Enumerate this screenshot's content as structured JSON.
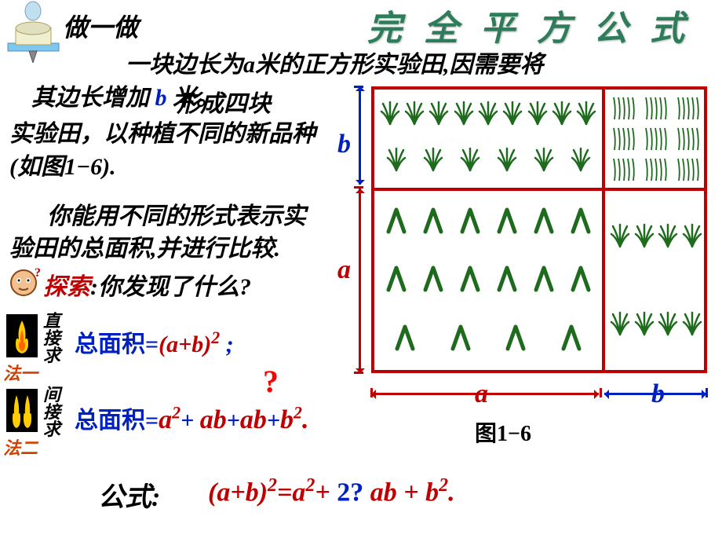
{
  "title": "完全平方公式",
  "header": {
    "doIt": "做一做"
  },
  "problem": {
    "line1_pre": "一块边长为",
    "line1_a": "a",
    "line1_post": "米的正方形实验田,因需要将",
    "line2_pre": "其边长增加 ",
    "line2_b": "b",
    "line2_post": " 米。",
    "line2b": "形成四块",
    "line3": "实验田，以种植不同的新品种",
    "line4": "(如图1−6).",
    "line5": "你能用不同的形式表示实",
    "line6": "验田的总面积,并进行比较."
  },
  "explore": {
    "label": "探索",
    "colon": ":",
    "question": "你发现了什么?"
  },
  "methods": {
    "m1_vert": "直接求",
    "m1_name": "法一",
    "m2_vert": "间接求",
    "m2_name": "法二",
    "f1_label": "总面积=",
    "f1_expr_open": "(",
    "f1_a": "a",
    "f1_plus": "+",
    "f1_b": "b",
    "f1_close": ")",
    "f1_sup": "2",
    "f1_semi": " ;",
    "qmark": "?",
    "f2_label": "总面积=",
    "f2_a2": "a",
    "f2_sup": "2",
    "f2_p1": "+ ",
    "f2_ab1": "ab",
    "f2_p2": "+",
    "f2_ab2": "ab",
    "f2_p3": "+",
    "f2_b2": "b",
    "f2_dot": "."
  },
  "formula": {
    "label": "公式:",
    "expr_open": "(a+b)",
    "sup2": "2",
    "eq": "=",
    "a2": "a",
    "plus1": "+ ",
    "two": "2",
    "qblue": "?",
    "ab": "ab ",
    "plus2": "+ ",
    "b2": "b",
    "dot": "."
  },
  "diagram": {
    "b": "b",
    "a": "a",
    "caption": "图1−6"
  }
}
